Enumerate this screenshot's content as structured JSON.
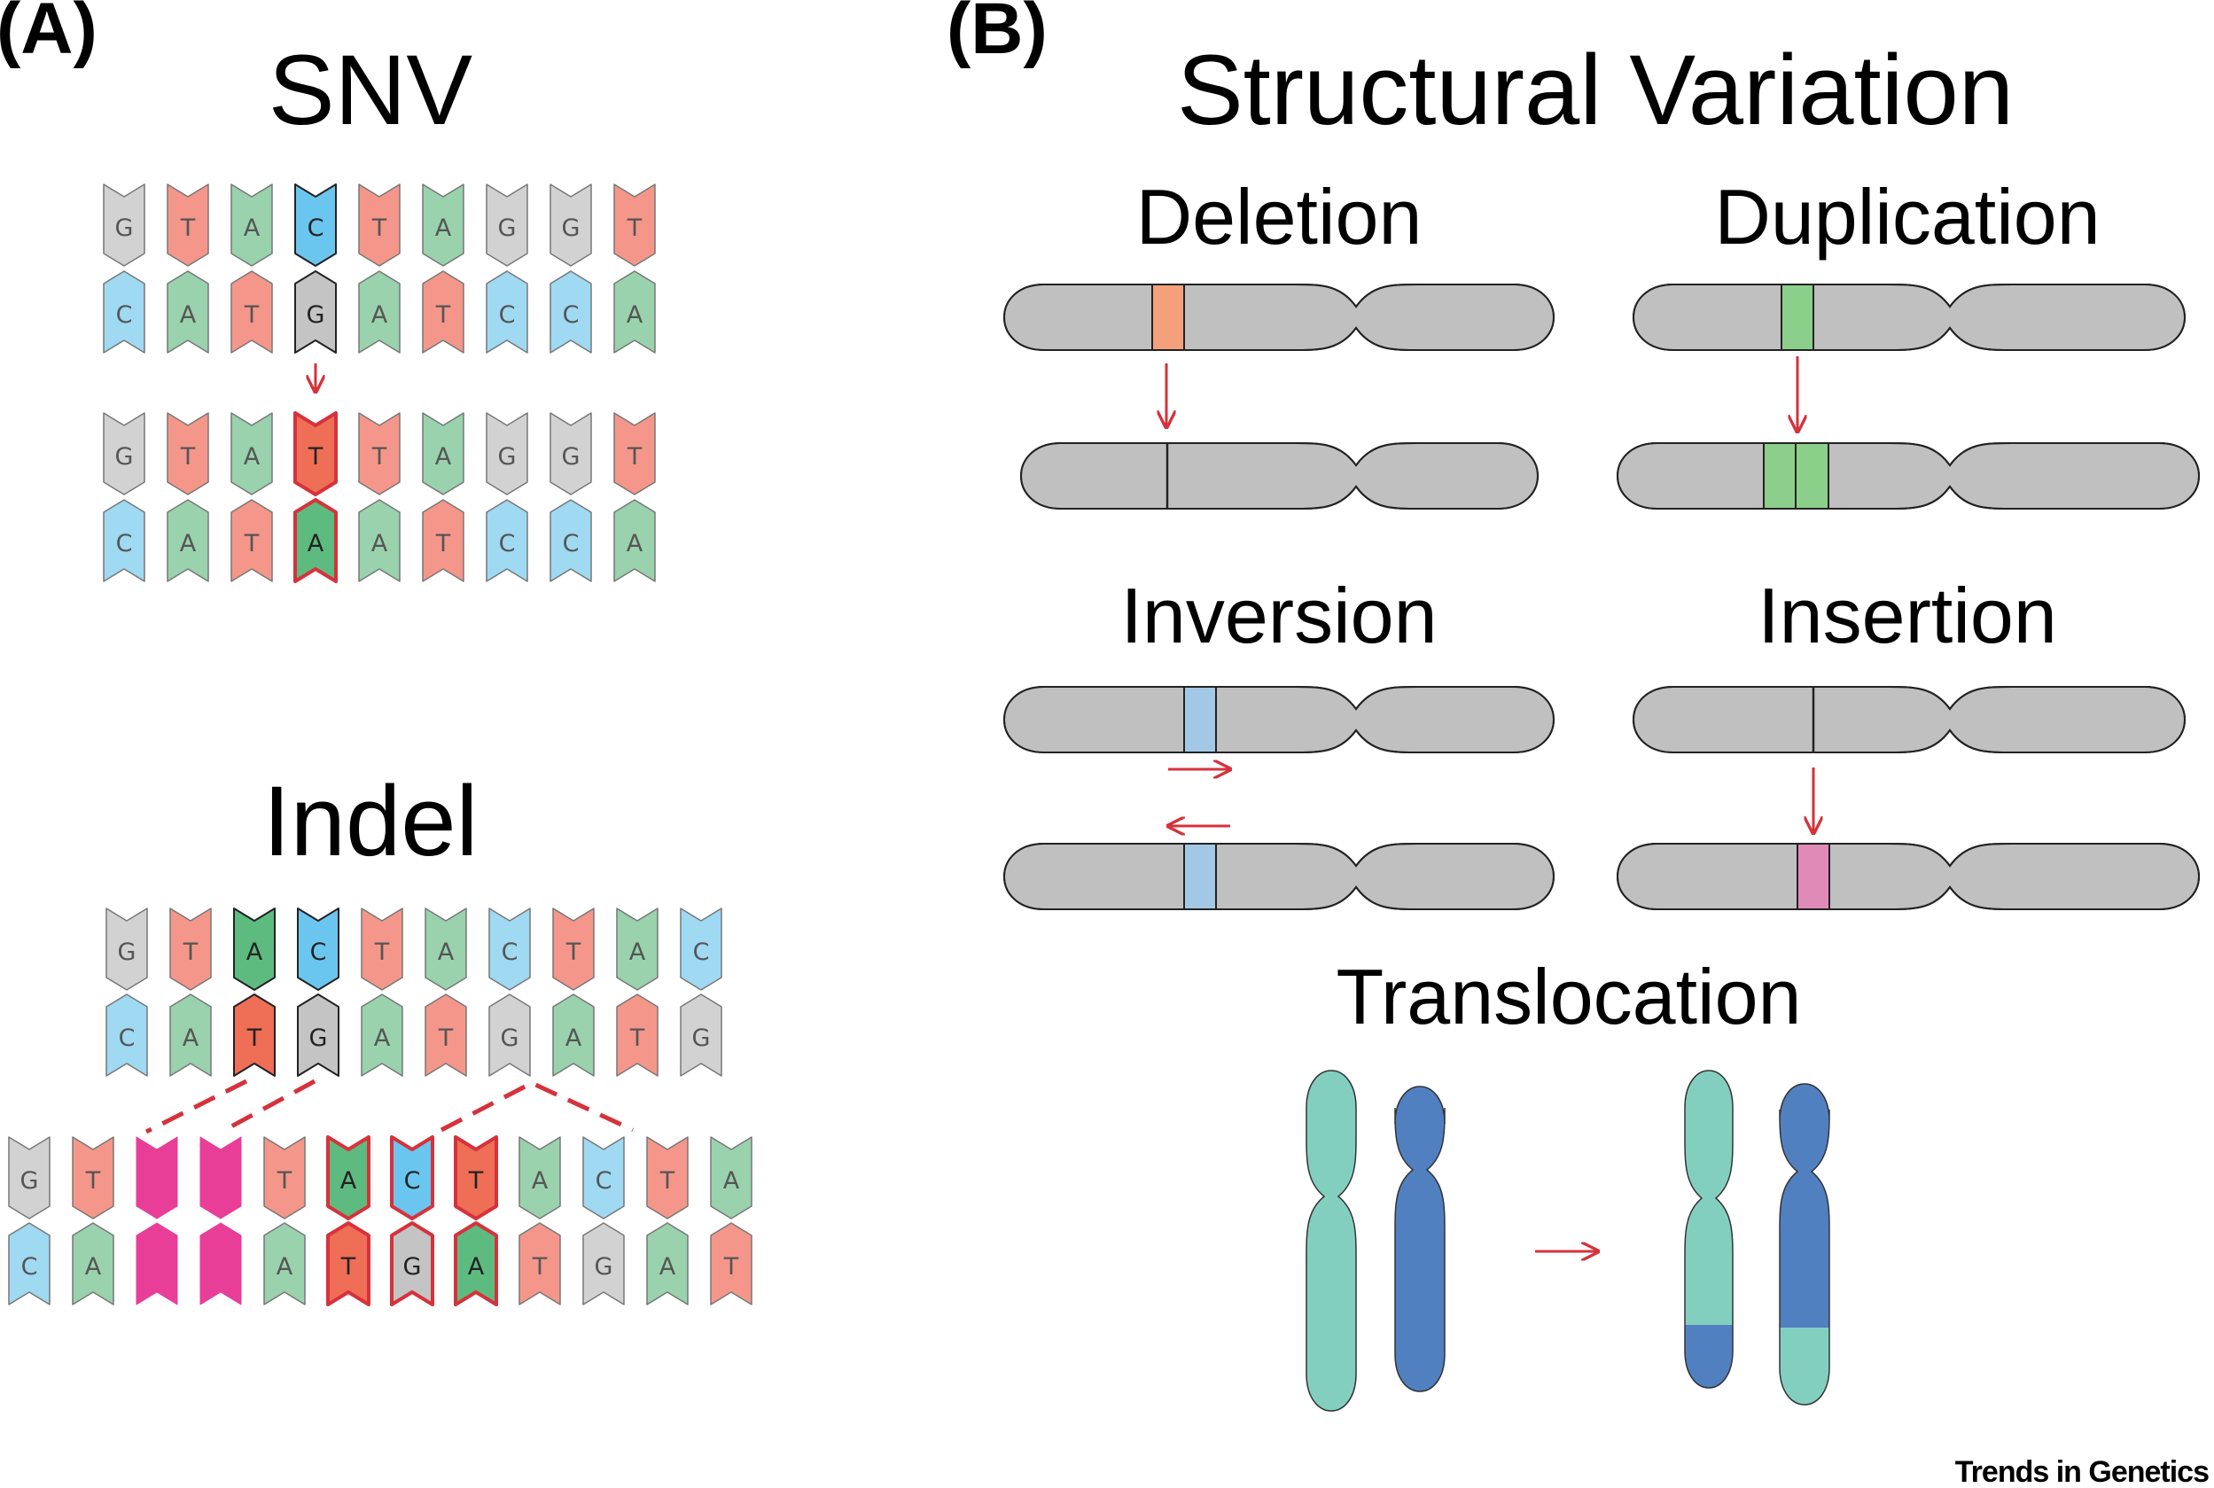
{
  "panels": {
    "a": "(A)",
    "b": "(B)"
  },
  "snv": {
    "title": "SNV",
    "before": {
      "top": [
        "G",
        "T",
        "A",
        "C",
        "T",
        "A",
        "G",
        "G",
        "T"
      ],
      "bottom": [
        "C",
        "A",
        "T",
        "G",
        "A",
        "T",
        "C",
        "C",
        "A"
      ]
    },
    "after": {
      "top": [
        "G",
        "T",
        "A",
        "T",
        "T",
        "A",
        "G",
        "G",
        "T"
      ],
      "bottom": [
        "C",
        "A",
        "T",
        "A",
        "A",
        "T",
        "C",
        "C",
        "A"
      ]
    },
    "changed_index": 3
  },
  "indel": {
    "title": "Indel",
    "before": {
      "top": [
        "G",
        "T",
        "A",
        "C",
        "T",
        "A",
        "C",
        "T",
        "A",
        "C"
      ],
      "bottom": [
        "C",
        "A",
        "T",
        "G",
        "A",
        "T",
        "G",
        "A",
        "T",
        "G"
      ]
    },
    "after": {
      "top": [
        "G",
        "T",
        "",
        "",
        "T",
        "A",
        "C",
        "T",
        "A",
        "C",
        "T",
        "A"
      ],
      "bottom": [
        "C",
        "A",
        "",
        "",
        "A",
        "T",
        "G",
        "A",
        "T",
        "G",
        "A",
        "T"
      ]
    },
    "deleted_indices": [
      2,
      3
    ],
    "inserted_indices": [
      5,
      6,
      7
    ]
  },
  "sv": {
    "title": "Structural Variation",
    "deletion": "Deletion",
    "duplication": "Duplication",
    "inversion": "Inversion",
    "insertion": "Insertion",
    "translocation": "Translocation"
  },
  "colors": {
    "G": "#d2d2d2",
    "T": "#f4978a",
    "A": "#99d2ac",
    "C": "#9fd9f2",
    "chromosome": "#c0c0c0",
    "arrow": "#d6323c",
    "deleted_band": "#f4a07a",
    "duplicated_band": "#8ccf8a",
    "inverted_band": "#a3c8e6",
    "inserted_band": "#e08ab8",
    "indel_gap": "#e83e98",
    "chrom_teal": "#83cfbf",
    "chrom_blue": "#5080c0"
  },
  "credit": "Trends in Genetics"
}
